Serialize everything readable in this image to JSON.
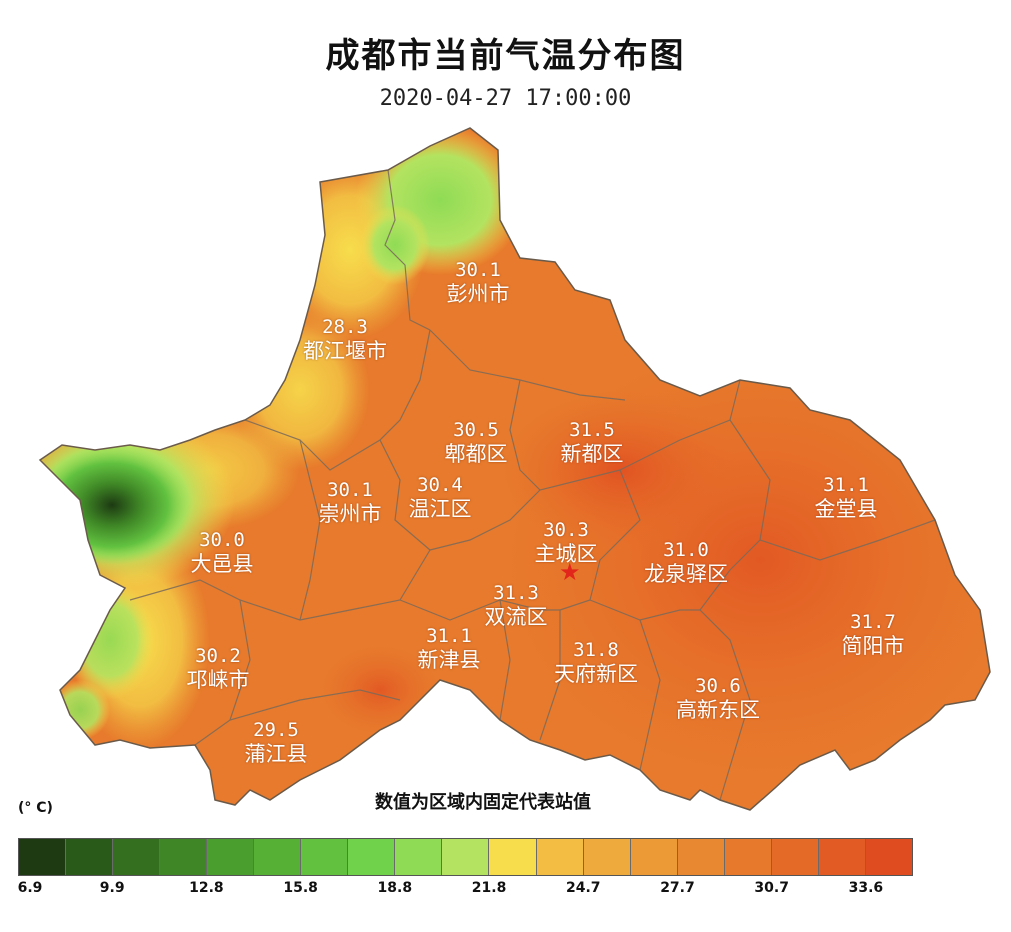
{
  "map": {
    "title": "成都市当前气温分布图",
    "datetime": "2020-04-27 17:00:00",
    "note": "数值为区域内固定代表站值",
    "unit": "(° C)",
    "city_center_icon": "star-icon",
    "districts": [
      {
        "name": "彭州市",
        "value": "30.1"
      },
      {
        "name": "都江堰市",
        "value": "28.3"
      },
      {
        "name": "郫都区",
        "value": "30.5"
      },
      {
        "name": "新都区",
        "value": "31.5"
      },
      {
        "name": "温江区",
        "value": "30.4"
      },
      {
        "name": "崇州市",
        "value": "30.1"
      },
      {
        "name": "金堂县",
        "value": "31.1"
      },
      {
        "name": "主城区",
        "value": "30.3"
      },
      {
        "name": "大邑县",
        "value": "30.0"
      },
      {
        "name": "龙泉驿区",
        "value": "31.0"
      },
      {
        "name": "双流区",
        "value": "31.3"
      },
      {
        "name": "新津县",
        "value": "31.1"
      },
      {
        "name": "邛崃市",
        "value": "30.2"
      },
      {
        "name": "天府新区",
        "value": "31.8"
      },
      {
        "name": "简阳市",
        "value": "31.7"
      },
      {
        "name": "高新东区",
        "value": "30.6"
      },
      {
        "name": "蒲江县",
        "value": "29.5"
      }
    ]
  },
  "legend": {
    "colors": [
      "#1d3a12",
      "#2a5a1a",
      "#346f1f",
      "#3f8726",
      "#4a9e2d",
      "#55b035",
      "#62c240",
      "#70d24b",
      "#8fdb55",
      "#b3e360",
      "#f7dd4c",
      "#f2bd42",
      "#eeaa3c",
      "#eb9a36",
      "#e88931",
      "#e6792c",
      "#e46a28",
      "#e25b24",
      "#df4c20"
    ],
    "ticks": [
      "6.9",
      "9.9",
      "12.8",
      "15.8",
      "18.8",
      "21.8",
      "24.7",
      "27.7",
      "30.7",
      "33.6"
    ]
  }
}
